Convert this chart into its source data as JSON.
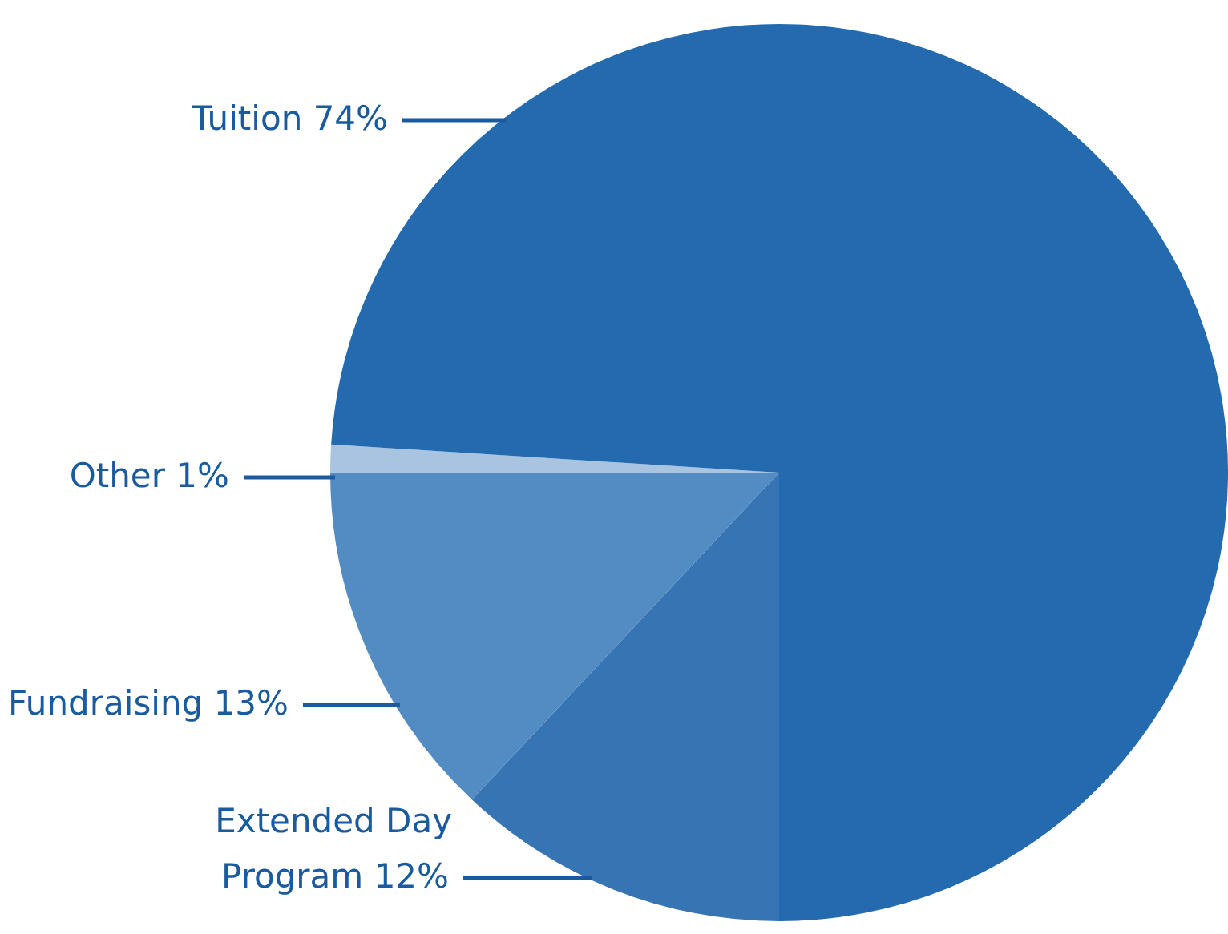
{
  "chart_data": {
    "type": "pie",
    "categories": [
      "Extended Day Program",
      "Fundraising",
      "Other",
      "Tuition"
    ],
    "values": [
      12,
      13,
      1,
      74
    ],
    "colors": [
      "#3674b4",
      "#538cc2",
      "#a8c4e0",
      "#236bae"
    ],
    "value_labels": [
      "12%",
      "13%",
      "1%",
      "74%"
    ],
    "data_labels": true
  }
}
